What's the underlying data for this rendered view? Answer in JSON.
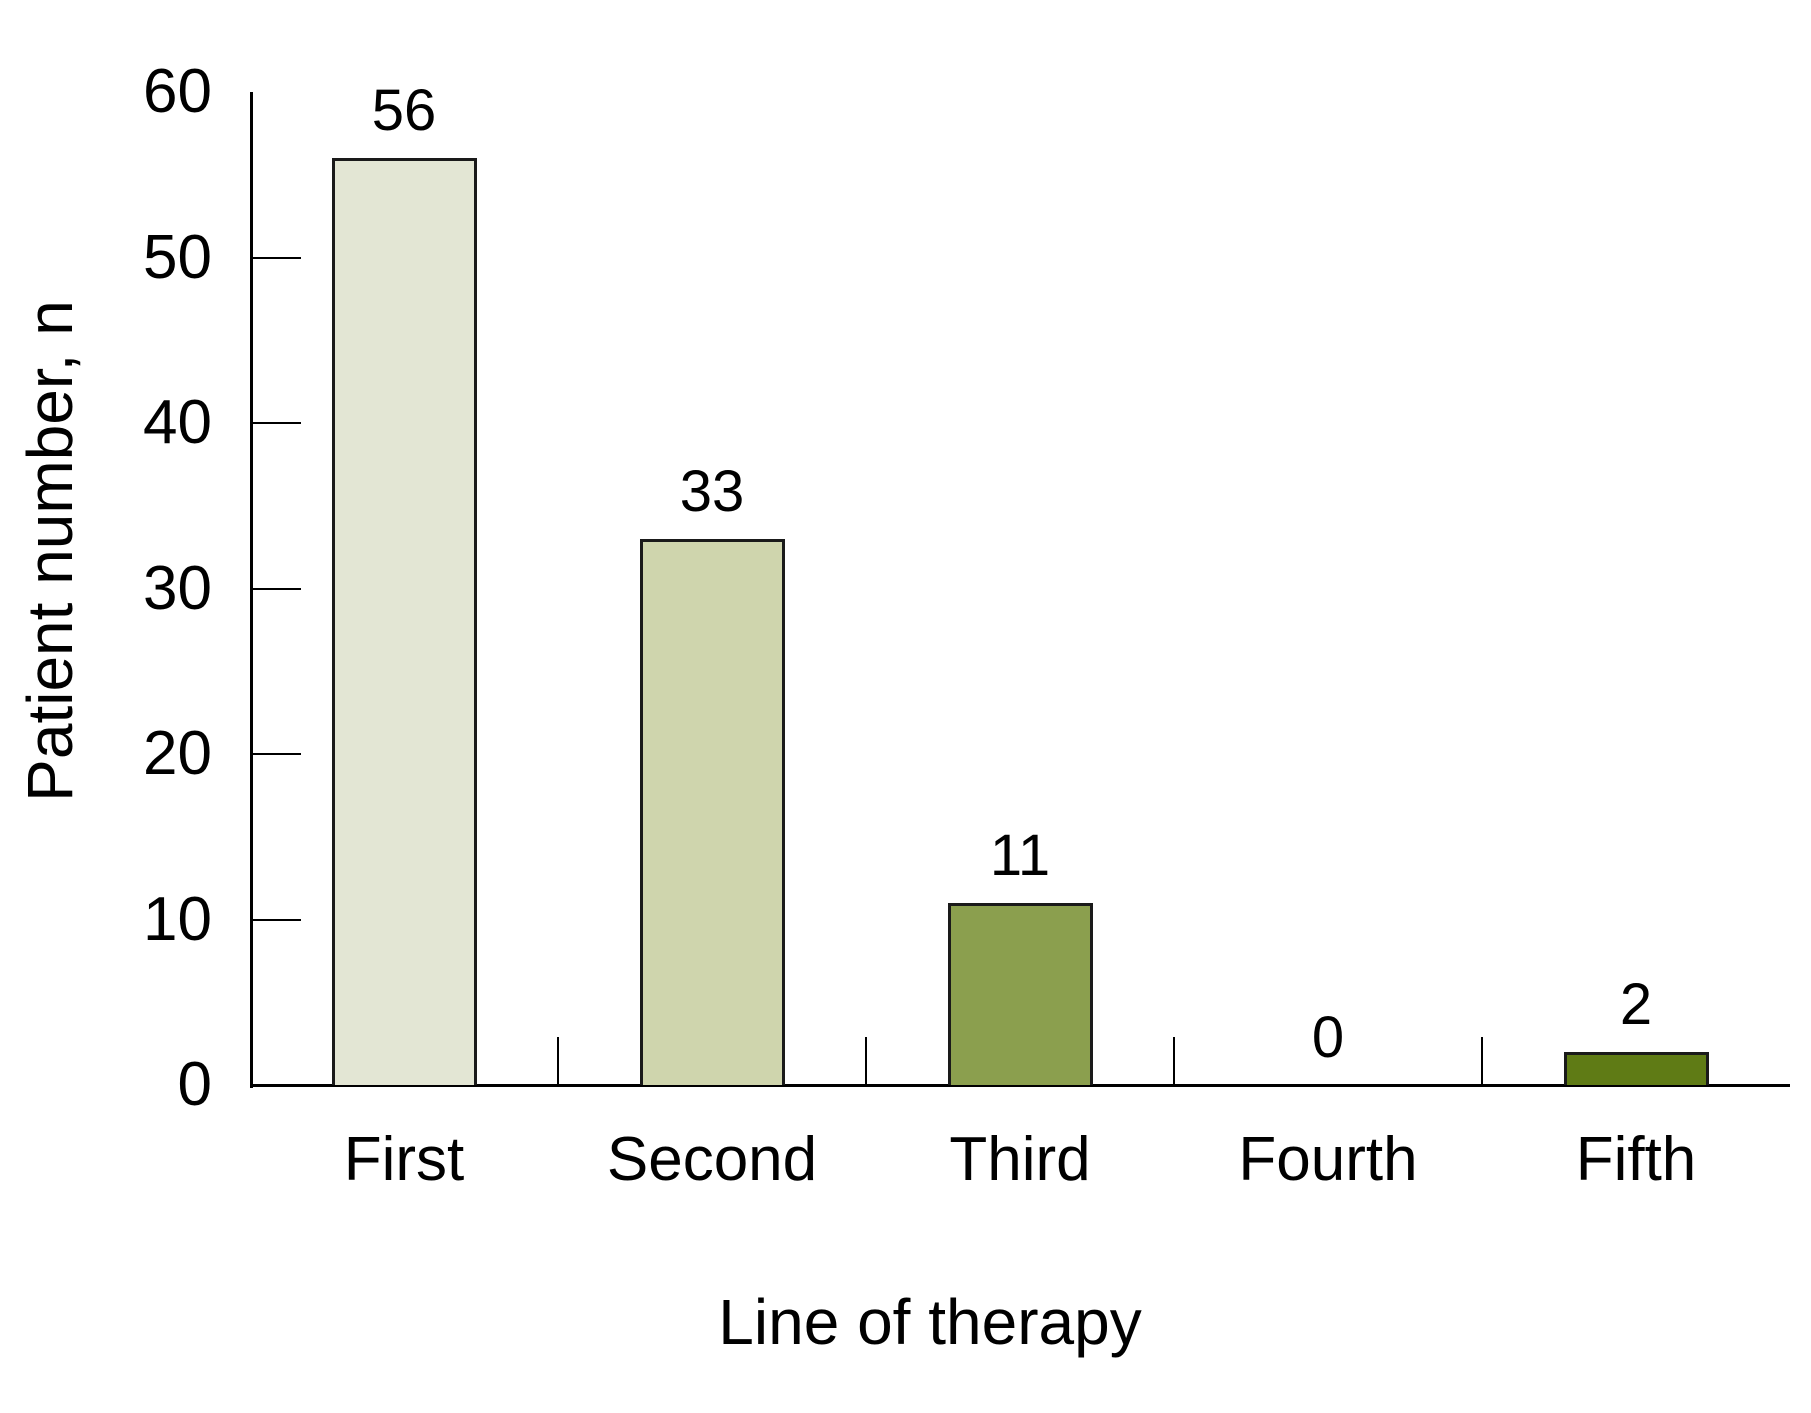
{
  "chart_data": {
    "type": "bar",
    "categories": [
      "First",
      "Second",
      "Third",
      "Fourth",
      "Fifth"
    ],
    "values": [
      56,
      33,
      11,
      0,
      2
    ],
    "data_labels": [
      "56",
      "33",
      "11",
      "0",
      "2"
    ],
    "xlabel": "Line of therapy",
    "ylabel": "Patient number, n",
    "ylim": [
      0,
      60
    ],
    "yticks": [
      0,
      10,
      20,
      30,
      40,
      50,
      60
    ],
    "grid": false,
    "legend": false,
    "background": "#ffffff",
    "axis_color": "#000000",
    "text_color": "#000000",
    "bar_border_color": "#1a1a1a",
    "bar_colors": [
      "#e3e6d4",
      "#cfd5ad",
      "#8b9f4e",
      null,
      "#5f7b15"
    ]
  }
}
